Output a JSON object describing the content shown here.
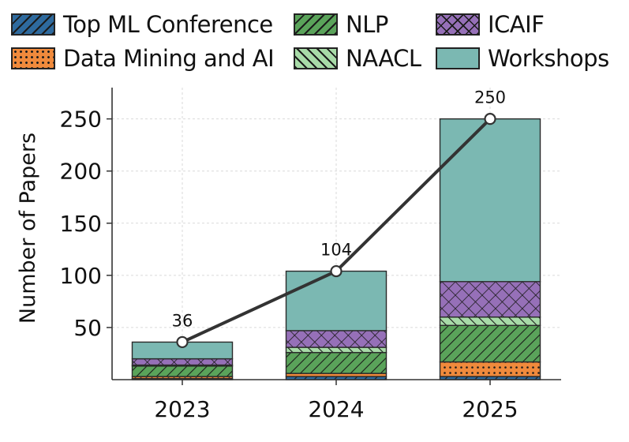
{
  "chart_data": {
    "type": "bar",
    "stacked": true,
    "categories": [
      "2023",
      "2024",
      "2025"
    ],
    "ylabel": "Number of Papers",
    "xlabel": "",
    "ylim": [
      0,
      280
    ],
    "yticks": [
      50,
      100,
      150,
      200,
      250
    ],
    "grid": true,
    "legend_position": "top",
    "series": [
      {
        "name": "Top ML Conference",
        "values": [
          1,
          3,
          3
        ],
        "color": "#2e6a9e",
        "pattern": "diag-right"
      },
      {
        "name": "Data Mining and AI",
        "values": [
          2,
          3,
          14
        ],
        "color": "#f08a3c",
        "pattern": "dots"
      },
      {
        "name": "NLP",
        "values": [
          10,
          20,
          35
        ],
        "color": "#5aa35a",
        "pattern": "diag-right"
      },
      {
        "name": "NAACL",
        "values": [
          1,
          5,
          8
        ],
        "color": "#a8dba8",
        "pattern": "diag-left"
      },
      {
        "name": "ICAIF",
        "values": [
          6,
          16,
          34
        ],
        "color": "#9670b8",
        "pattern": "cross"
      },
      {
        "name": "Workshops",
        "values": [
          16,
          57,
          156
        ],
        "color": "#7bb8b2",
        "pattern": "none"
      }
    ],
    "total_line": {
      "values": [
        36,
        104,
        250
      ],
      "color": "#333333",
      "labels": [
        "36",
        "104",
        "250"
      ]
    }
  }
}
